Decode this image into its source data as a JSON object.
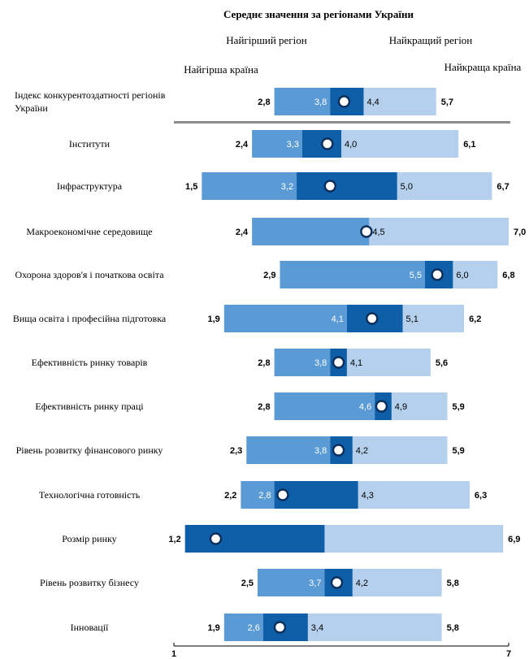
{
  "chart_data": {
    "type": "bar",
    "title": "Середнє значення за регіонами України",
    "legend": {
      "worst_region": "Найгірший регіон",
      "best_region": "Найкращий регіон",
      "worst_country": "Найгірша країна",
      "best_country": "Найкраща країна"
    },
    "colors": {
      "light": "#b4d0ec",
      "medium": "#5b9bd5",
      "dark": "#0e5ea8",
      "separator": "#8c8c8c",
      "marker_fill": "#ffffff",
      "marker_stroke": "#0b2f5c"
    },
    "xlim": [
      1,
      7
    ],
    "x_ticks": [
      "1",
      "7"
    ],
    "rows": [
      {
        "label": "Індекс конкурентоздатності регіонів України",
        "worst_country": 2.8,
        "worst_region": 3.8,
        "best_region": 4.4,
        "best_country": 5.7,
        "labels": [
          "2,8",
          "3,8",
          "4,4",
          "5,7"
        ]
      },
      {
        "label": "Інститути",
        "worst_country": 2.4,
        "worst_region": 3.3,
        "best_region": 4.0,
        "best_country": 6.1,
        "labels": [
          "2,4",
          "3,3",
          "4,0",
          "6,1"
        ]
      },
      {
        "label": "Інфраструктура",
        "worst_country": 1.5,
        "worst_region": 3.2,
        "best_region": 5.0,
        "best_country": 6.7,
        "labels": [
          "1,5",
          "3,2",
          "5,0",
          "6,7"
        ]
      },
      {
        "label": "Макроекономічне середовище",
        "worst_country": 2.4,
        "worst_region": 4.5,
        "best_region": 4.5,
        "best_country": 7.0,
        "labels": [
          "2,4",
          "",
          "4,5",
          "7,0"
        ]
      },
      {
        "label": "Охорона здоров'я і початкова освіта",
        "worst_country": 2.9,
        "worst_region": 5.5,
        "best_region": 6.0,
        "best_country": 6.8,
        "labels": [
          "2,9",
          "5,5",
          "6,0",
          "6,8"
        ]
      },
      {
        "label": "Вища освіта і професійна підготовка",
        "worst_country": 1.9,
        "worst_region": 4.1,
        "best_region": 5.1,
        "best_country": 6.2,
        "labels": [
          "1,9",
          "4,1",
          "5,1",
          "6,2"
        ]
      },
      {
        "label": "Ефективність ринку товарів",
        "worst_country": 2.8,
        "worst_region": 3.8,
        "best_region": 4.1,
        "best_country": 5.6,
        "labels": [
          "2,8",
          "3,8",
          "4,1",
          "5,6"
        ]
      },
      {
        "label": "Ефективність ринку праці",
        "worst_country": 2.8,
        "worst_region": 4.6,
        "best_region": 4.9,
        "best_country": 5.9,
        "labels": [
          "2,8",
          "4,6",
          "4,9",
          "5,9"
        ]
      },
      {
        "label": "Рівень розвитку фінансового ринку",
        "worst_country": 2.3,
        "worst_region": 3.8,
        "best_region": 4.2,
        "best_country": 5.9,
        "labels": [
          "2,3",
          "3,8",
          "4,2",
          "5,9"
        ]
      },
      {
        "label": "Технологічна готовність",
        "worst_country": 2.2,
        "worst_region": 2.8,
        "best_region": 4.3,
        "best_country": 6.3,
        "labels": [
          "2,2",
          "2,8",
          "4,3",
          "6,3"
        ]
      },
      {
        "label": "Розмір ринку",
        "worst_country": 1.2,
        "worst_region": 1.2,
        "best_region": 3.7,
        "best_country": 6.9,
        "labels": [
          "1,2",
          "",
          "",
          "6,9"
        ]
      },
      {
        "label": "Рівень розвитку бізнесу",
        "worst_country": 2.5,
        "worst_region": 3.7,
        "best_region": 4.2,
        "best_country": 5.8,
        "labels": [
          "2,5",
          "3,7",
          "4,2",
          "5,8"
        ]
      },
      {
        "label": "Інновації",
        "worst_country": 1.9,
        "worst_region": 2.6,
        "best_region": 3.4,
        "best_country": 5.8,
        "labels": [
          "1,9",
          "2,6",
          "3,4",
          "5,8"
        ]
      }
    ],
    "markers": [
      4.05,
      3.75,
      3.8,
      4.45,
      5.72,
      4.55,
      3.95,
      4.72,
      3.95,
      2.95,
      1.75,
      3.92,
      2.9
    ]
  }
}
